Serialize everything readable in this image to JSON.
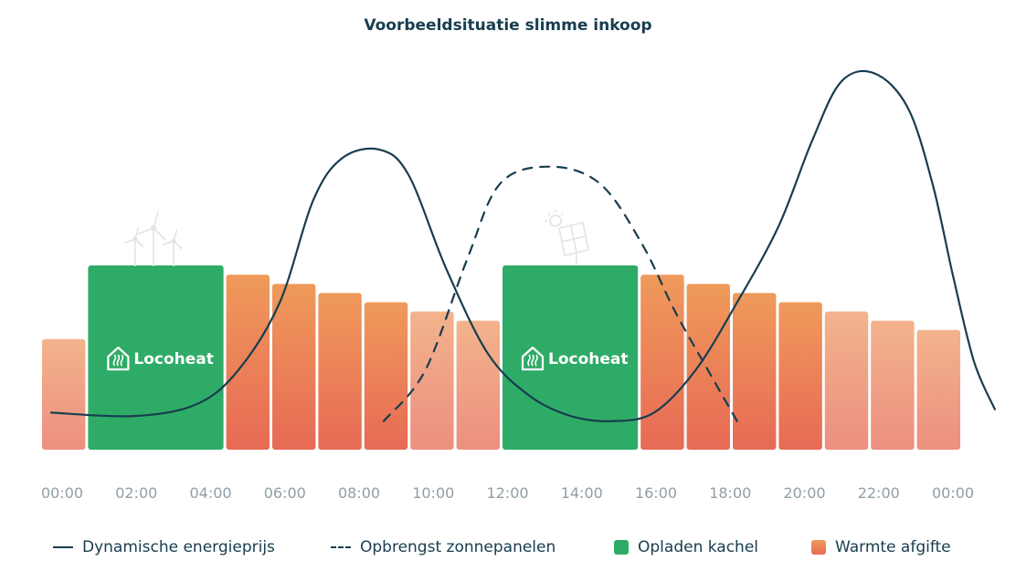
{
  "chart_data": {
    "type": "bar",
    "title": "Voorbeeldsituatie slimme inkoop",
    "xlabel": "",
    "ylabel": "",
    "x_ticks": [
      "00:00",
      "02:00",
      "04:00",
      "06:00",
      "08:00",
      "10:00",
      "12:00",
      "14:00",
      "16:00",
      "18:00",
      "20:00",
      "22:00",
      "00:00"
    ],
    "bars": [
      {
        "kind": "warmte",
        "hours": 1,
        "level": 0.6
      },
      {
        "kind": "opladen",
        "hours": 3,
        "level": 1.0,
        "label": "Locoheat"
      },
      {
        "kind": "warmte",
        "hours": 1,
        "level": 0.95
      },
      {
        "kind": "warmte",
        "hours": 1,
        "level": 0.9
      },
      {
        "kind": "warmte",
        "hours": 1,
        "level": 0.85
      },
      {
        "kind": "warmte",
        "hours": 1,
        "level": 0.8
      },
      {
        "kind": "warmte",
        "hours": 1,
        "level": 0.75
      },
      {
        "kind": "warmte",
        "hours": 1,
        "level": 0.7
      },
      {
        "kind": "opladen",
        "hours": 3,
        "level": 1.0,
        "label": "Locoheat"
      },
      {
        "kind": "warmte",
        "hours": 1,
        "level": 0.95
      },
      {
        "kind": "warmte",
        "hours": 1,
        "level": 0.9
      },
      {
        "kind": "warmte",
        "hours": 1,
        "level": 0.85
      },
      {
        "kind": "warmte",
        "hours": 1,
        "level": 0.8
      },
      {
        "kind": "warmte",
        "hours": 1,
        "level": 0.75
      },
      {
        "kind": "warmte",
        "hours": 1,
        "level": 0.7
      },
      {
        "kind": "warmte",
        "hours": 1,
        "level": 0.65
      }
    ],
    "series": [
      {
        "name": "Dynamische energieprijs",
        "style": "solid",
        "points": [
          [
            0,
            0.1
          ],
          [
            2,
            0.08
          ],
          [
            3.5,
            0.15
          ],
          [
            4.5,
            0.35
          ],
          [
            5.5,
            0.75
          ],
          [
            6.3,
            1.35
          ],
          [
            7,
            1.6
          ],
          [
            7.9,
            1.65
          ],
          [
            8.6,
            1.5
          ],
          [
            9.5,
            0.95
          ],
          [
            10.5,
            0.45
          ],
          [
            11.5,
            0.2
          ],
          [
            12.5,
            0.08
          ],
          [
            13.5,
            0.05
          ],
          [
            14.5,
            0.1
          ],
          [
            15.5,
            0.35
          ],
          [
            16.5,
            0.75
          ],
          [
            17.5,
            1.2
          ],
          [
            18.3,
            1.7
          ],
          [
            19,
            2.05
          ],
          [
            19.8,
            2.1
          ],
          [
            20.6,
            1.9
          ],
          [
            21.2,
            1.45
          ],
          [
            21.7,
            0.9
          ],
          [
            22.2,
            0.4
          ],
          [
            22.7,
            0.12
          ]
        ]
      },
      {
        "name": "Opbrengst zonnepanelen",
        "style": "dashed",
        "points": [
          [
            8,
            0.05
          ],
          [
            9,
            0.35
          ],
          [
            10,
            1.0
          ],
          [
            10.8,
            1.45
          ],
          [
            12,
            1.55
          ],
          [
            13.2,
            1.45
          ],
          [
            14.2,
            1.1
          ],
          [
            15,
            0.7
          ],
          [
            15.8,
            0.35
          ],
          [
            16.5,
            0.05
          ]
        ]
      }
    ],
    "legend": [
      {
        "label": "Dynamische energieprijs",
        "kind": "line"
      },
      {
        "label": "Opbrengst zonnepanelen",
        "kind": "dash"
      },
      {
        "label": "Opladen kachel",
        "kind": "green"
      },
      {
        "label": "Warmte afgifte",
        "kind": "orange"
      }
    ],
    "legend_position": "bottom",
    "grid": false,
    "icons": [
      "wind-turbines-icon",
      "solar-panel-icon",
      "house-heat-icon"
    ],
    "colors": {
      "text": "#173d4f",
      "tick": "#8f9ea6",
      "green": "#2fab68",
      "orange_top": "#ef9a5b",
      "orange_bottom": "#e76a55",
      "peach_top": "#f3b38c",
      "peach_bottom": "#ec8f80"
    }
  }
}
